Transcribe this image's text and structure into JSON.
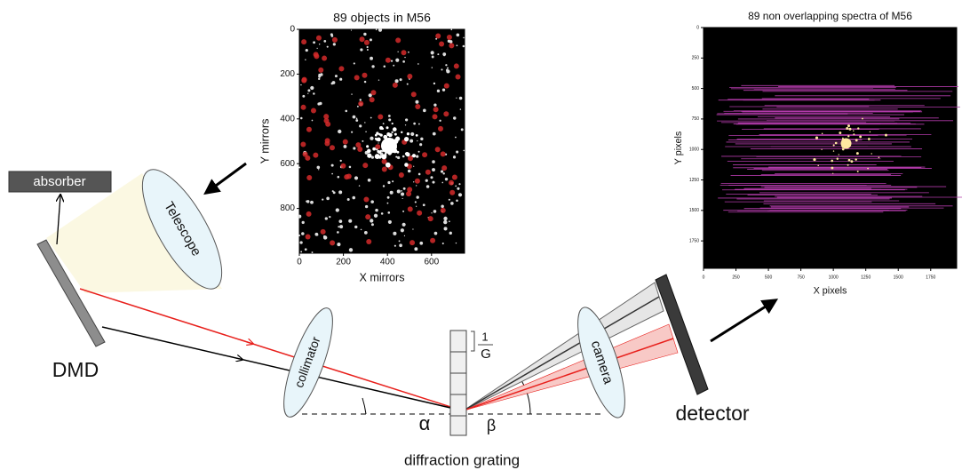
{
  "labels": {
    "absorber": "absorber",
    "telescope": "Telescope",
    "dmd": "DMD",
    "collimator": "collimator",
    "camera": "camera",
    "detector": "detector",
    "grating": "diffraction grating",
    "alpha": "α",
    "beta": "β",
    "one": "1",
    "g": "G"
  },
  "left_plot": {
    "title": "89 objects in M56",
    "xlabel": "X mirrors",
    "ylabel": "Y mirrors",
    "xlim": [
      0,
      750
    ],
    "ylim": [
      0,
      1000
    ],
    "xticks": [
      0,
      200,
      400,
      600
    ],
    "yticks": [
      0,
      200,
      400,
      600,
      800
    ]
  },
  "right_plot": {
    "title": "89 non overlapping spectra of M56",
    "xlabel": "X pixels",
    "ylabel": "Y pixels",
    "xlim": [
      0,
      1950
    ],
    "ylim": [
      0,
      1975
    ],
    "xticks": [
      0,
      250,
      500,
      750,
      1000,
      1250,
      1500,
      1750
    ],
    "yticks": [
      0,
      250,
      500,
      750,
      1000,
      1250,
      1500,
      1750
    ]
  }
}
